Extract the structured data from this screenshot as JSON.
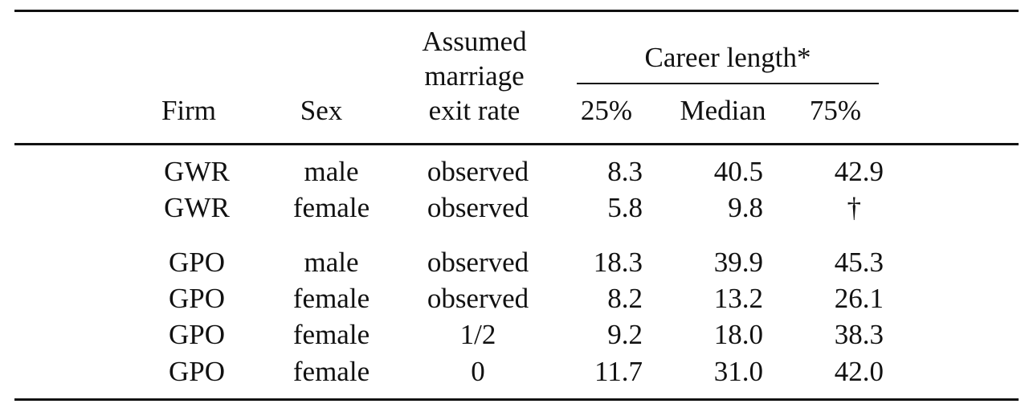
{
  "header": {
    "firm": "Firm",
    "sex": "Sex",
    "assumed_line1": "Assumed",
    "assumed_line2": "marriage",
    "assumed_line3": "exit rate",
    "career_length": "Career length*",
    "p25": "25%",
    "median": "Median",
    "p75": "75%"
  },
  "rows": [
    {
      "firm": "GWR",
      "sex": "male",
      "rate": "observed",
      "p25": "8.3",
      "median": "40.5",
      "p75": "42.9"
    },
    {
      "firm": "GWR",
      "sex": "female",
      "rate": "observed",
      "p25": "5.8",
      "median": "9.8",
      "p75": "†"
    },
    {
      "firm": "GPO",
      "sex": "male",
      "rate": "observed",
      "p25": "18.3",
      "median": "39.9",
      "p75": "45.3"
    },
    {
      "firm": "GPO",
      "sex": "female",
      "rate": "observed",
      "p25": "8.2",
      "median": "13.2",
      "p75": "26.1"
    },
    {
      "firm": "GPO",
      "sex": "female",
      "rate": "1/2",
      "p25": "9.2",
      "median": "18.0",
      "p75": "38.3"
    },
    {
      "firm": "GPO",
      "sex": "female",
      "rate": "0",
      "p25": "11.7",
      "median": "31.0",
      "p75": "42.0"
    }
  ]
}
